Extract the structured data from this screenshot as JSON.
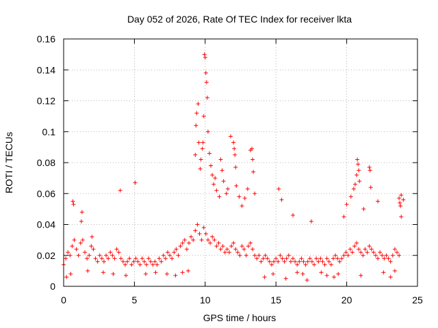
{
  "chart_data": {
    "type": "scatter",
    "title": "Day 052 of 2026, Rate Of TEC Index for receiver lkta",
    "xlabel": "GPS time / hours",
    "ylabel": "ROTI / TECUs",
    "xlim": [
      0,
      25
    ],
    "ylim": [
      0,
      0.16
    ],
    "x_ticks": [
      0,
      5,
      10,
      15,
      20,
      25
    ],
    "y_ticks": [
      0,
      0.02,
      0.04,
      0.06,
      0.08,
      0.1,
      0.12,
      0.14,
      0.16
    ],
    "x_tick_labels": [
      "0",
      "5",
      "10",
      "15",
      "20",
      "25"
    ],
    "y_tick_labels": [
      "0",
      "0.02",
      "0.04",
      "0.06",
      "0.08",
      "0.1",
      "0.12",
      "0.14",
      "0.16"
    ],
    "grid": true,
    "marker": "+",
    "color": "#ff0000",
    "series": [
      {
        "name": "ROTI",
        "x": [
          0.0,
          0.15,
          0.3,
          0.45,
          0.6,
          0.75,
          0.9,
          1.05,
          1.2,
          1.35,
          1.5,
          1.65,
          1.8,
          1.95,
          2.1,
          2.25,
          2.4,
          2.55,
          2.7,
          2.85,
          3.0,
          3.15,
          3.3,
          3.45,
          3.6,
          3.75,
          3.9,
          4.05,
          4.2,
          4.35,
          4.5,
          4.65,
          4.8,
          4.95,
          5.1,
          5.25,
          5.4,
          5.55,
          5.7,
          5.85,
          6.0,
          6.15,
          6.3,
          6.45,
          6.6,
          6.75,
          6.9,
          7.05,
          7.2,
          7.35,
          7.5,
          7.65,
          7.8,
          7.95,
          8.1,
          8.25,
          8.4,
          8.55,
          8.7,
          8.85,
          9.0,
          9.15,
          9.3,
          9.45,
          9.6,
          9.75,
          9.9,
          10.05,
          10.2,
          10.35,
          10.5,
          10.65,
          10.8,
          10.95,
          11.1,
          11.25,
          11.4,
          11.55,
          11.7,
          11.85,
          12.0,
          12.15,
          12.3,
          12.45,
          12.6,
          12.75,
          12.9,
          13.05,
          13.2,
          13.35,
          13.5,
          13.65,
          13.8,
          13.95,
          14.1,
          14.25,
          14.4,
          14.55,
          14.7,
          14.85,
          15.0,
          15.15,
          15.3,
          15.45,
          15.6,
          15.75,
          15.9,
          16.05,
          16.2,
          16.35,
          16.5,
          16.65,
          16.8,
          16.95,
          17.1,
          17.25,
          17.4,
          17.55,
          17.7,
          17.85,
          18.0,
          18.15,
          18.3,
          18.45,
          18.6,
          18.75,
          18.9,
          19.05,
          19.2,
          19.35,
          19.5,
          19.65,
          19.8,
          19.95,
          20.1,
          20.25,
          20.4,
          20.55,
          20.7,
          20.85,
          21.0,
          21.15,
          21.3,
          21.45,
          21.6,
          21.75,
          21.9,
          22.05,
          22.2,
          22.35,
          22.5,
          22.65,
          22.8,
          22.95,
          23.1,
          23.25,
          23.4,
          23.55,
          23.7,
          23.85,
          24.0,
          0.65,
          0.7,
          1.25,
          1.3,
          2.0,
          4.0,
          5.05,
          9.3,
          9.35,
          9.4,
          9.5,
          9.55,
          9.65,
          9.7,
          9.8,
          9.85,
          9.9,
          9.95,
          10.0,
          10.05,
          10.1,
          10.15,
          10.2,
          10.3,
          10.4,
          10.5,
          10.6,
          10.7,
          10.8,
          11.0,
          11.1,
          11.2,
          11.3,
          11.5,
          11.6,
          11.8,
          12.0,
          12.05,
          12.1,
          12.15,
          12.2,
          12.4,
          12.6,
          12.8,
          13.0,
          13.2,
          13.3,
          13.35,
          13.4,
          13.5,
          15.2,
          15.4,
          16.2,
          17.5,
          19.8,
          20.0,
          20.3,
          20.5,
          20.6,
          20.7,
          20.75,
          20.8,
          20.85,
          20.9,
          21.2,
          21.6,
          21.65,
          21.7,
          22.2,
          23.7,
          23.75,
          23.8,
          23.85,
          0.2,
          0.5,
          1.7,
          2.8,
          3.5,
          4.4,
          5.8,
          6.5,
          7.3,
          7.9,
          8.4,
          8.8,
          14.2,
          14.8,
          15.7,
          16.5,
          16.9,
          17.2,
          18.2,
          18.6,
          19.1,
          19.4,
          21.0,
          22.6,
          23.1,
          23.4
        ],
        "y": [
          0.014,
          0.018,
          0.022,
          0.02,
          0.026,
          0.03,
          0.024,
          0.02,
          0.028,
          0.03,
          0.022,
          0.018,
          0.02,
          0.026,
          0.024,
          0.018,
          0.016,
          0.02,
          0.018,
          0.016,
          0.02,
          0.018,
          0.022,
          0.02,
          0.018,
          0.024,
          0.022,
          0.018,
          0.016,
          0.014,
          0.016,
          0.018,
          0.014,
          0.016,
          0.018,
          0.016,
          0.014,
          0.018,
          0.016,
          0.014,
          0.018,
          0.016,
          0.014,
          0.016,
          0.014,
          0.018,
          0.016,
          0.02,
          0.018,
          0.022,
          0.02,
          0.018,
          0.022,
          0.024,
          0.02,
          0.026,
          0.028,
          0.03,
          0.024,
          0.028,
          0.032,
          0.03,
          0.036,
          0.04,
          0.034,
          0.03,
          0.038,
          0.034,
          0.03,
          0.028,
          0.032,
          0.03,
          0.026,
          0.028,
          0.024,
          0.026,
          0.022,
          0.024,
          0.022,
          0.026,
          0.028,
          0.024,
          0.022,
          0.02,
          0.026,
          0.024,
          0.02,
          0.026,
          0.028,
          0.024,
          0.02,
          0.018,
          0.02,
          0.016,
          0.018,
          0.02,
          0.018,
          0.016,
          0.014,
          0.016,
          0.018,
          0.016,
          0.02,
          0.018,
          0.016,
          0.018,
          0.02,
          0.016,
          0.018,
          0.016,
          0.014,
          0.016,
          0.018,
          0.016,
          0.014,
          0.016,
          0.018,
          0.016,
          0.014,
          0.018,
          0.016,
          0.018,
          0.016,
          0.014,
          0.018,
          0.016,
          0.014,
          0.018,
          0.02,
          0.018,
          0.016,
          0.018,
          0.02,
          0.022,
          0.02,
          0.024,
          0.022,
          0.026,
          0.028,
          0.024,
          0.022,
          0.02,
          0.024,
          0.022,
          0.026,
          0.024,
          0.022,
          0.02,
          0.018,
          0.022,
          0.02,
          0.018,
          0.02,
          0.018,
          0.016,
          0.02,
          0.024,
          0.022,
          0.02,
          0.059,
          0.056,
          0.055,
          0.053,
          0.042,
          0.048,
          0.032,
          0.062,
          0.067,
          0.085,
          0.104,
          0.112,
          0.118,
          0.093,
          0.076,
          0.082,
          0.089,
          0.093,
          0.11,
          0.15,
          0.148,
          0.138,
          0.132,
          0.122,
          0.1,
          0.086,
          0.078,
          0.072,
          0.066,
          0.07,
          0.062,
          0.058,
          0.082,
          0.075,
          0.068,
          0.06,
          0.063,
          0.097,
          0.093,
          0.089,
          0.085,
          0.077,
          0.065,
          0.058,
          0.052,
          0.057,
          0.063,
          0.088,
          0.089,
          0.082,
          0.074,
          0.06,
          0.063,
          0.056,
          0.046,
          0.042,
          0.045,
          0.053,
          0.058,
          0.063,
          0.066,
          0.072,
          0.082,
          0.079,
          0.075,
          0.068,
          0.05,
          0.077,
          0.075,
          0.064,
          0.055,
          0.057,
          0.054,
          0.052,
          0.045,
          0.006,
          0.008,
          0.01,
          0.009,
          0.008,
          0.007,
          0.008,
          0.009,
          0.008,
          0.007,
          0.009,
          0.01,
          0.006,
          0.008,
          0.005,
          0.009,
          0.008,
          0.004,
          0.009,
          0.007,
          0.006,
          0.008,
          0.007,
          0.009,
          0.006,
          0.01
        ]
      }
    ]
  }
}
